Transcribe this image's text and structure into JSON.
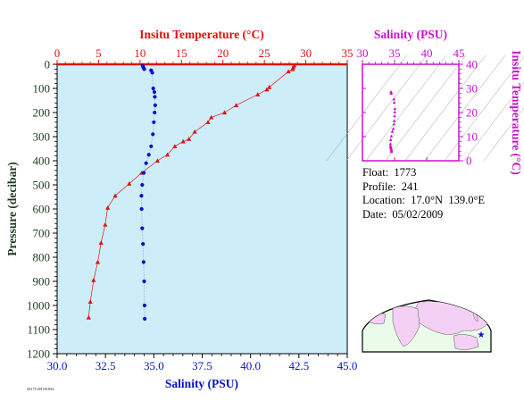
{
  "colors": {
    "temperature": "#e01010",
    "salinity": "#0a10c8",
    "inset": "#cc10cc",
    "panel_bg": "#cdeef8",
    "axis_text": "#1e3d1e"
  },
  "chart_data": [
    {
      "type": "scatter",
      "title": "",
      "axes": {
        "top_x": {
          "label": "Insitu Temperature (°C)",
          "range": [
            0,
            35
          ],
          "ticks": [
            "0",
            "5",
            "10",
            "15",
            "20",
            "25",
            "30",
            "35"
          ]
        },
        "bottom_x": {
          "label": "Salinity (PSU)",
          "range": [
            30.0,
            45.0
          ],
          "ticks": [
            "30.0",
            "32.5",
            "35.0",
            "37.5",
            "40.0",
            "42.5",
            "45.0"
          ]
        },
        "y": {
          "label": "Pressure (decibar)",
          "range": [
            1200,
            0
          ],
          "ticks": [
            "0",
            "100",
            "200",
            "300",
            "400",
            "500",
            "600",
            "700",
            "800",
            "900",
            "1000",
            "1100",
            "1200"
          ]
        }
      },
      "grid": false,
      "series": [
        {
          "name": "",
          "variable": "temperature",
          "axis": "top_x",
          "marker": "triangle",
          "points": [
            [
              28.6,
              5
            ],
            [
              28.5,
              12
            ],
            [
              28.4,
              20
            ],
            [
              27.9,
              30
            ],
            [
              25.6,
              95
            ],
            [
              25.3,
              105
            ],
            [
              24.2,
              125
            ],
            [
              21.6,
              170
            ],
            [
              20.2,
              200
            ],
            [
              18.6,
              220
            ],
            [
              18.2,
              240
            ],
            [
              16.6,
              280
            ],
            [
              15.9,
              310
            ],
            [
              15.2,
              320
            ],
            [
              14.2,
              340
            ],
            [
              13.3,
              375
            ],
            [
              12.1,
              400
            ],
            [
              10.2,
              450
            ],
            [
              8.7,
              495
            ],
            [
              7.0,
              545
            ],
            [
              6.1,
              595
            ],
            [
              5.8,
              665
            ],
            [
              5.3,
              740
            ],
            [
              4.9,
              820
            ],
            [
              4.4,
              895
            ],
            [
              4.0,
              985
            ],
            [
              3.8,
              1050
            ]
          ]
        },
        {
          "name": "",
          "variable": "salinity",
          "axis": "bottom_x",
          "marker": "dot",
          "points": [
            [
              34.42,
              5
            ],
            [
              34.44,
              10
            ],
            [
              34.47,
              15
            ],
            [
              34.5,
              20
            ],
            [
              34.86,
              25
            ],
            [
              34.92,
              35
            ],
            [
              34.97,
              100
            ],
            [
              35.03,
              115
            ],
            [
              35.05,
              135
            ],
            [
              35.07,
              170
            ],
            [
              35.04,
              200
            ],
            [
              35.0,
              240
            ],
            [
              34.95,
              290
            ],
            [
              34.86,
              340
            ],
            [
              34.74,
              375
            ],
            [
              34.6,
              410
            ],
            [
              34.48,
              450
            ],
            [
              34.4,
              500
            ],
            [
              34.36,
              545
            ],
            [
              34.37,
              600
            ],
            [
              34.4,
              680
            ],
            [
              34.44,
              745
            ],
            [
              34.47,
              820
            ],
            [
              34.5,
              900
            ],
            [
              34.52,
              1000
            ],
            [
              34.53,
              1055
            ]
          ]
        }
      ]
    },
    {
      "type": "scatter",
      "title": "",
      "axes": {
        "x": {
          "label": "Salinity (PSU)",
          "range": [
            30,
            45
          ],
          "ticks": [
            "30",
            "35",
            "40",
            "45"
          ]
        },
        "y": {
          "label": "Insitu Temperature (°C)",
          "range": [
            0,
            40
          ],
          "ticks": [
            "0",
            "10",
            "20",
            "30",
            "40"
          ]
        }
      },
      "grid": false,
      "density_contours": true,
      "series": [
        {
          "name": "",
          "variable": "temperature vs salinity",
          "points": [
            [
              34.45,
              28.6
            ],
            [
              34.45,
              28.4
            ],
            [
              34.48,
              27.9
            ],
            [
              34.9,
              25.6
            ],
            [
              34.95,
              24.2
            ],
            [
              35.05,
              21.6
            ],
            [
              35.04,
              20.2
            ],
            [
              35.0,
              18.6
            ],
            [
              34.95,
              16.6
            ],
            [
              34.9,
              15.2
            ],
            [
              34.8,
              13.3
            ],
            [
              34.65,
              12.1
            ],
            [
              34.5,
              10.2
            ],
            [
              34.4,
              8.7
            ],
            [
              34.36,
              7.0
            ],
            [
              34.37,
              6.1
            ],
            [
              34.4,
              5.8
            ],
            [
              34.45,
              5.3
            ],
            [
              34.48,
              4.9
            ],
            [
              34.5,
              4.4
            ],
            [
              34.52,
              4.0
            ],
            [
              34.53,
              3.8
            ]
          ]
        }
      ]
    }
  ],
  "info": {
    "float_label": "Float:",
    "float_value": "1773",
    "profile_label": "Profile:",
    "profile_value": "241",
    "location_label": "Location:",
    "location_lat": "17.0°N",
    "location_lon": "139.0°E",
    "date_label": "Date:",
    "date_value": "05/02/2009"
  },
  "map": {
    "marker_lat": 17.0,
    "marker_lon": 139.0,
    "marker_symbol": "★"
  },
  "footer": {
    "tiny_text": "20171109181826"
  }
}
